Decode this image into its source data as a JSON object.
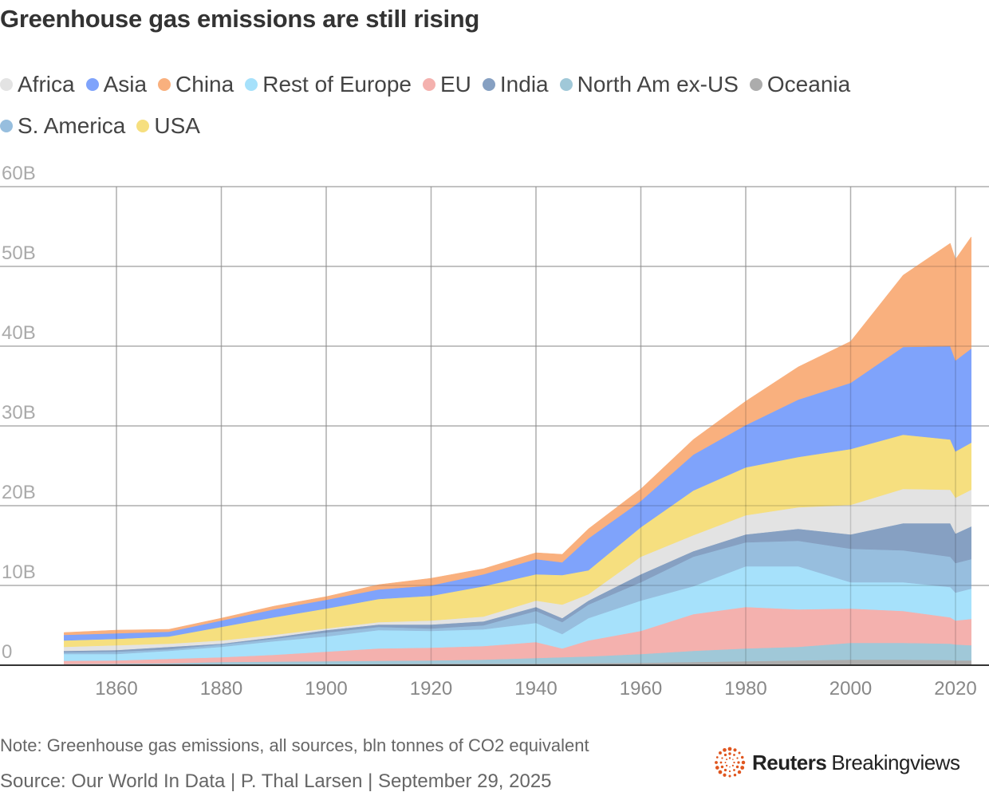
{
  "chart_data": {
    "type": "area",
    "stacked": true,
    "title": "Greenhouse gas emissions are still rising",
    "xlabel": "",
    "ylabel": "",
    "ylim": [
      0,
      60
    ],
    "xlim": [
      1850,
      2023
    ],
    "grid": true,
    "legend_position": "top",
    "y_ticks": [
      {
        "value": 0,
        "label": "0"
      },
      {
        "value": 10,
        "label": "10B"
      },
      {
        "value": 20,
        "label": "20B"
      },
      {
        "value": 30,
        "label": "30B"
      },
      {
        "value": 40,
        "label": "40B"
      },
      {
        "value": 50,
        "label": "50B"
      },
      {
        "value": 60,
        "label": "60B"
      }
    ],
    "x_ticks": [
      1860,
      1880,
      1900,
      1920,
      1940,
      1960,
      1980,
      2000,
      2020
    ],
    "x": [
      1850,
      1860,
      1870,
      1880,
      1890,
      1900,
      1910,
      1920,
      1930,
      1940,
      1945,
      1950,
      1960,
      1970,
      1980,
      1990,
      2000,
      2010,
      2019,
      2020,
      2023
    ],
    "legend_order": [
      "Africa",
      "Asia",
      "China",
      "Rest of Europe",
      "EU",
      "India",
      "North Am ex-US",
      "Oceania",
      "S. America",
      "USA"
    ],
    "series": [
      {
        "name": "Oceania",
        "color": "#acacac",
        "values": [
          0.02,
          0.03,
          0.04,
          0.05,
          0.07,
          0.1,
          0.15,
          0.2,
          0.2,
          0.2,
          0.22,
          0.25,
          0.3,
          0.4,
          0.5,
          0.6,
          0.7,
          0.7,
          0.65,
          0.6,
          0.6
        ]
      },
      {
        "name": "North Am ex-US",
        "color": "#a0c8d8",
        "values": [
          0.13,
          0.17,
          0.21,
          0.35,
          0.38,
          0.4,
          0.4,
          0.4,
          0.5,
          0.7,
          0.78,
          0.85,
          1.1,
          1.4,
          1.6,
          1.7,
          2.1,
          2.1,
          2.05,
          2.0,
          1.9
        ]
      },
      {
        "name": "EU",
        "color": "#f4b1ae",
        "values": [
          0.4,
          0.4,
          0.55,
          0.6,
          0.85,
          1.2,
          1.55,
          1.6,
          1.7,
          2.0,
          1.1,
          2.0,
          2.9,
          4.6,
          5.2,
          4.7,
          4.3,
          4.0,
          3.3,
          3.0,
          3.3
        ]
      },
      {
        "name": "Rest of Europe",
        "color": "#a6e1fb",
        "values": [
          0.85,
          0.8,
          1.0,
          1.3,
          1.7,
          1.9,
          2.3,
          2.1,
          2.1,
          2.4,
          1.8,
          2.8,
          3.8,
          3.5,
          5.1,
          5.4,
          3.3,
          3.6,
          3.8,
          3.5,
          3.8
        ]
      },
      {
        "name": "S. America",
        "color": "#97bede",
        "values": [
          0.2,
          0.3,
          0.2,
          0.3,
          0.3,
          0.5,
          0.4,
          0.3,
          0.5,
          1.5,
          1.5,
          1.7,
          2.3,
          3.7,
          3.0,
          3.2,
          4.2,
          4.0,
          3.8,
          3.7,
          3.7
        ]
      },
      {
        "name": "India",
        "color": "#86a0c2",
        "values": [
          0.2,
          0.2,
          0.3,
          0.1,
          0.2,
          0.3,
          0.3,
          0.5,
          0.5,
          0.5,
          0.5,
          0.5,
          1.0,
          0.7,
          1.0,
          1.5,
          1.8,
          3.4,
          4.2,
          3.7,
          4.1
        ]
      },
      {
        "name": "Africa",
        "color": "#e3e3e3",
        "values": [
          0.5,
          0.6,
          0.4,
          0.4,
          0.3,
          0.2,
          0.3,
          0.5,
          0.6,
          0.8,
          1.7,
          0.8,
          2.2,
          2.0,
          2.4,
          2.7,
          3.7,
          4.3,
          4.2,
          4.5,
          4.6
        ]
      },
      {
        "name": "USA",
        "color": "#f6df7f",
        "values": [
          0.8,
          0.8,
          0.9,
          1.7,
          2.2,
          2.5,
          2.9,
          3.1,
          3.8,
          3.3,
          3.7,
          3.0,
          3.7,
          5.6,
          6.0,
          6.3,
          7.0,
          6.8,
          6.3,
          5.8,
          5.9
        ]
      },
      {
        "name": "Asia",
        "color": "#7fa3fb",
        "values": [
          0.7,
          0.7,
          0.6,
          0.8,
          1.0,
          1.1,
          1.2,
          1.3,
          1.5,
          1.9,
          1.6,
          4.0,
          3.3,
          4.5,
          5.3,
          7.2,
          8.3,
          11.0,
          11.7,
          11.4,
          11.8
        ]
      },
      {
        "name": "China",
        "color": "#f9b07e",
        "values": [
          0.3,
          0.4,
          0.3,
          0.3,
          0.4,
          0.4,
          0.6,
          0.9,
          0.7,
          0.8,
          1.0,
          1.2,
          1.5,
          1.9,
          3.0,
          4.1,
          5.2,
          9.0,
          12.9,
          12.7,
          14.0
        ]
      }
    ]
  },
  "note": "Note: Greenhouse gas emissions, all sources, bln tonnes of CO2 equivalent",
  "source": "Source: Our World In Data | P. Thal Larsen | September 29, 2025",
  "logo": {
    "bold": "Reuters",
    "light": "Breakingviews",
    "color": "#e0561f"
  }
}
